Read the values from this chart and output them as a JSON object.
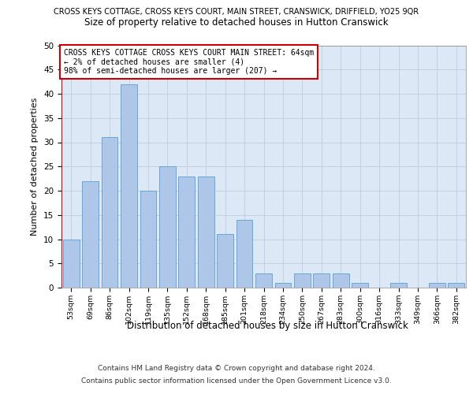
{
  "title_top": "CROSS KEYS COTTAGE, CROSS KEYS COURT, MAIN STREET, CRANSWICK, DRIFFIELD, YO25 9QR",
  "title_main": "Size of property relative to detached houses in Hutton Cranswick",
  "xlabel": "Distribution of detached houses by size in Hutton Cranswick",
  "ylabel": "Number of detached properties",
  "footer_line1": "Contains HM Land Registry data © Crown copyright and database right 2024.",
  "footer_line2": "Contains public sector information licensed under the Open Government Licence v3.0.",
  "annotation_line1": "CROSS KEYS COTTAGE CROSS KEYS COURT MAIN STREET: 64sqm",
  "annotation_line2": "← 2% of detached houses are smaller (4)",
  "annotation_line3": "98% of semi-detached houses are larger (207) →",
  "bar_labels": [
    "53sqm",
    "69sqm",
    "86sqm",
    "102sqm",
    "119sqm",
    "135sqm",
    "152sqm",
    "168sqm",
    "185sqm",
    "201sqm",
    "218sqm",
    "234sqm",
    "250sqm",
    "267sqm",
    "283sqm",
    "300sqm",
    "316sqm",
    "333sqm",
    "349sqm",
    "366sqm",
    "382sqm"
  ],
  "bar_values": [
    10,
    22,
    31,
    42,
    20,
    25,
    23,
    23,
    11,
    14,
    3,
    1,
    3,
    3,
    3,
    1,
    0,
    1,
    0,
    1,
    1
  ],
  "bar_color": "#aec6e8",
  "bar_edge_color": "#5a9fd4",
  "marker_color": "#cc0000",
  "background_color": "#ffffff",
  "title_bar_color": "#d0d0d0",
  "plot_bg_color": "#dce8f5",
  "grid_color": "#b8c8d8",
  "ylim": [
    0,
    50
  ],
  "yticks": [
    0,
    5,
    10,
    15,
    20,
    25,
    30,
    35,
    40,
    45,
    50
  ],
  "annotation_box_edge_color": "#cc0000",
  "fig_width": 6.0,
  "fig_height": 5.0
}
